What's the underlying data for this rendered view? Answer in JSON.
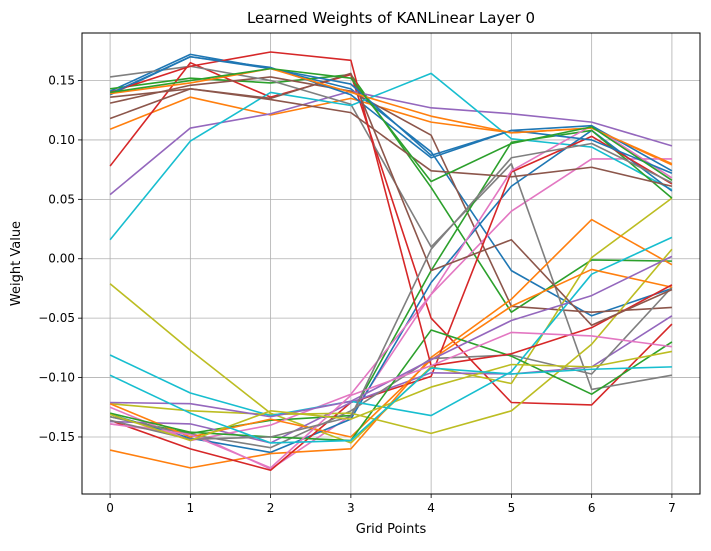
{
  "chart_data": {
    "type": "line",
    "title": "Learned Weights of KANLinear Layer 0",
    "xlabel": "Grid Points",
    "ylabel": "Weight Value",
    "x": [
      0,
      1,
      2,
      3,
      4,
      5,
      6,
      7
    ],
    "xlim": [
      -0.35,
      7.35
    ],
    "ylim": [
      -0.198,
      0.19
    ],
    "xticks": [
      0,
      1,
      2,
      3,
      4,
      5,
      6,
      7
    ],
    "yticks": [
      -0.15,
      -0.1,
      -0.05,
      0.0,
      0.05,
      0.1,
      0.15
    ],
    "ytick_labels": [
      "−0.15",
      "−0.10",
      "−0.05",
      "0.00",
      "0.05",
      "0.10",
      "0.15"
    ],
    "grid": true,
    "series": [
      {
        "color": "#1f77b4",
        "values": [
          0.141,
          0.172,
          0.16,
          0.143,
          0.09,
          -0.01,
          -0.048,
          -0.025
        ]
      },
      {
        "color": "#ff7f0e",
        "values": [
          0.109,
          0.136,
          0.121,
          0.135,
          0.115,
          0.106,
          0.11,
          0.079
        ]
      },
      {
        "color": "#2ca02c",
        "values": [
          0.143,
          0.152,
          0.148,
          0.155,
          0.06,
          -0.045,
          -0.001,
          -0.002
        ]
      },
      {
        "color": "#d62728",
        "values": [
          0.078,
          0.165,
          0.136,
          0.155,
          -0.05,
          -0.121,
          -0.123,
          -0.055
        ]
      },
      {
        "color": "#9467bd",
        "values": [
          0.054,
          0.11,
          0.122,
          0.141,
          0.127,
          0.122,
          0.115,
          0.095
        ]
      },
      {
        "color": "#8c564b",
        "values": [
          0.131,
          0.146,
          0.153,
          0.141,
          0.104,
          -0.04,
          -0.045,
          -0.041
        ]
      },
      {
        "color": "#e377c2",
        "values": [
          -0.139,
          -0.146,
          -0.177,
          -0.132,
          -0.03,
          0.04,
          0.084,
          0.084
        ]
      },
      {
        "color": "#7f7f7f",
        "values": [
          0.153,
          0.162,
          0.15,
          0.13,
          0.01,
          0.08,
          -0.11,
          -0.098
        ]
      },
      {
        "color": "#bcbd22",
        "values": [
          -0.021,
          -0.077,
          -0.13,
          -0.155,
          -0.091,
          -0.105,
          0.001,
          0.051
        ]
      },
      {
        "color": "#17becf",
        "values": [
          0.016,
          0.099,
          0.14,
          0.129,
          0.156,
          0.101,
          0.094,
          0.058
        ]
      },
      {
        "color": "#1f77b4",
        "values": [
          -0.131,
          -0.151,
          -0.163,
          -0.135,
          -0.02,
          0.061,
          0.108,
          0.057
        ]
      },
      {
        "color": "#ff7f0e",
        "values": [
          -0.161,
          -0.176,
          -0.164,
          -0.16,
          -0.083,
          -0.034,
          0.033,
          -0.005
        ]
      },
      {
        "color": "#2ca02c",
        "values": [
          -0.133,
          -0.147,
          -0.136,
          -0.132,
          -0.01,
          0.098,
          0.108,
          0.051
        ]
      },
      {
        "color": "#d62728",
        "values": [
          -0.136,
          -0.16,
          -0.178,
          -0.121,
          -0.099,
          0.073,
          0.103,
          0.063
        ]
      },
      {
        "color": "#9467bd",
        "values": [
          -0.137,
          -0.139,
          -0.155,
          -0.121,
          -0.096,
          -0.097,
          -0.091,
          -0.048
        ]
      },
      {
        "color": "#8c564b",
        "values": [
          0.118,
          0.143,
          0.134,
          0.123,
          0.074,
          0.069,
          0.077,
          0.061
        ]
      },
      {
        "color": "#e377c2",
        "values": [
          -0.125,
          -0.153,
          -0.14,
          -0.114,
          -0.03,
          0.074,
          0.112,
          0.068
        ]
      },
      {
        "color": "#7f7f7f",
        "values": [
          -0.133,
          -0.148,
          -0.159,
          -0.128,
          -0.084,
          -0.081,
          -0.097,
          -0.024
        ]
      },
      {
        "color": "#bcbd22",
        "values": [
          -0.122,
          -0.128,
          -0.131,
          -0.13,
          -0.147,
          -0.128,
          -0.072,
          0.008
        ]
      },
      {
        "color": "#17becf",
        "values": [
          -0.081,
          -0.113,
          -0.132,
          -0.12,
          -0.132,
          -0.095,
          -0.013,
          0.018
        ]
      },
      {
        "color": "#1f77b4",
        "values": [
          0.138,
          0.17,
          0.161,
          0.138,
          0.085,
          0.108,
          0.112,
          0.074
        ]
      },
      {
        "color": "#ff7f0e",
        "values": [
          -0.122,
          -0.15,
          -0.135,
          -0.15,
          -0.085,
          -0.04,
          -0.009,
          -0.024
        ]
      },
      {
        "color": "#2ca02c",
        "values": [
          -0.13,
          -0.146,
          -0.15,
          -0.153,
          -0.06,
          -0.082,
          -0.114,
          -0.07
        ]
      },
      {
        "color": "#d62728",
        "values": [
          0.14,
          0.162,
          0.174,
          0.167,
          -0.09,
          -0.08,
          -0.058,
          -0.022
        ]
      },
      {
        "color": "#9467bd",
        "values": [
          -0.121,
          -0.122,
          -0.133,
          -0.12,
          -0.085,
          -0.052,
          -0.031,
          0.002
        ]
      },
      {
        "color": "#8c564b",
        "values": [
          0.136,
          0.143,
          0.135,
          0.156,
          -0.01,
          0.016,
          -0.056,
          -0.026
        ]
      },
      {
        "color": "#e377c2",
        "values": [
          -0.139,
          -0.148,
          -0.176,
          -0.115,
          -0.09,
          -0.062,
          -0.065,
          -0.074
        ]
      },
      {
        "color": "#7f7f7f",
        "values": [
          -0.136,
          -0.152,
          -0.15,
          -0.133,
          0.008,
          0.085,
          0.097,
          0.064
        ]
      },
      {
        "color": "#bcbd22",
        "values": [
          -0.131,
          -0.153,
          -0.128,
          -0.135,
          -0.108,
          -0.089,
          -0.091,
          -0.078
        ]
      },
      {
        "color": "#17becf",
        "values": [
          -0.098,
          -0.13,
          -0.155,
          -0.153,
          -0.092,
          -0.097,
          -0.093,
          -0.091
        ]
      },
      {
        "color": "#1f77b4",
        "values": [
          0.139,
          0.17,
          0.16,
          0.147,
          0.087,
          0.108,
          0.1,
          0.072
        ]
      },
      {
        "color": "#ff7f0e",
        "values": [
          0.139,
          0.148,
          0.16,
          0.14,
          0.12,
          0.106,
          0.11,
          0.08
        ]
      },
      {
        "color": "#2ca02c",
        "values": [
          0.14,
          0.15,
          0.16,
          0.152,
          0.065,
          0.097,
          0.111,
          0.066
        ]
      }
    ]
  }
}
